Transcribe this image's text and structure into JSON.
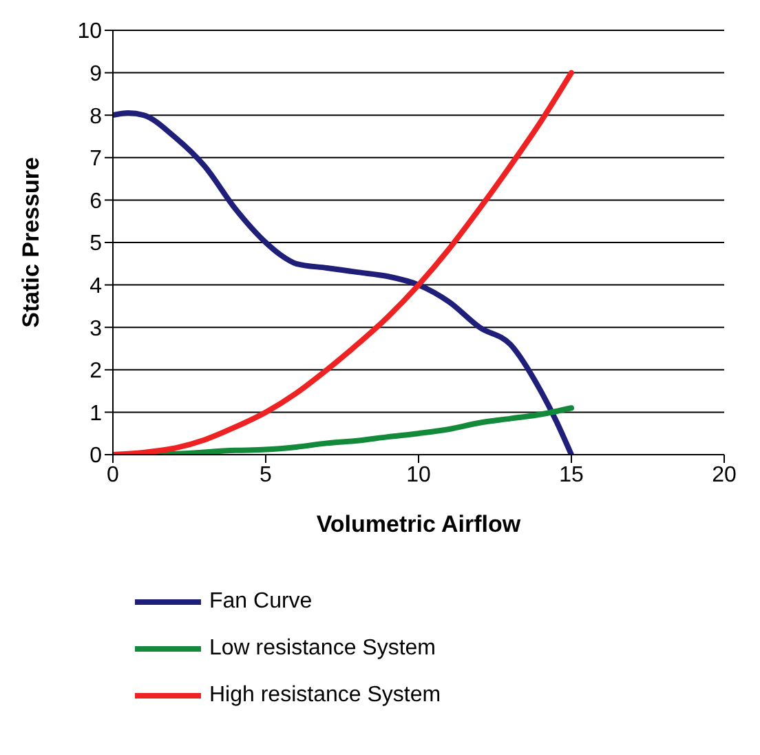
{
  "chart_data": {
    "type": "line",
    "xlabel": "Volumetric Airflow",
    "ylabel": "Static Pressure",
    "xlim": [
      0,
      20
    ],
    "xticks": [
      0,
      5,
      10,
      15,
      20
    ],
    "ylim": [
      0,
      10
    ],
    "yticks": [
      0,
      1,
      2,
      3,
      4,
      5,
      6,
      7,
      8,
      9,
      10
    ],
    "grid": "y",
    "legend": "bottom",
    "marker": "none",
    "line_style": "solid",
    "series": [
      {
        "name": "Fan Curve",
        "color": "#1f1f7a",
        "x": [
          0,
          0.5,
          1,
          2,
          3,
          4,
          5,
          5.5,
          6,
          7,
          8,
          9,
          10,
          11,
          12,
          13,
          14,
          14.5,
          15
        ],
        "values": [
          8,
          8.05,
          8,
          7.5,
          6.8,
          5.8,
          5,
          4.7,
          4.5,
          4.4,
          4.3,
          4.2,
          4,
          3.6,
          3,
          2.6,
          1.5,
          0.8,
          0
        ]
      },
      {
        "name": "Low resistance System",
        "color": "#128a3a",
        "x": [
          0,
          2,
          4,
          5,
          6,
          7,
          8,
          9,
          10,
          11,
          12,
          13,
          14,
          15
        ],
        "values": [
          0,
          0.02,
          0.1,
          0.12,
          0.18,
          0.27,
          0.33,
          0.42,
          0.5,
          0.6,
          0.75,
          0.85,
          0.95,
          1.1
        ]
      },
      {
        "name": "High resistance System",
        "color": "#ee2222",
        "x": [
          0,
          1,
          2,
          3,
          4,
          5,
          6,
          7,
          8,
          9,
          10,
          11,
          12,
          13,
          14,
          15
        ],
        "values": [
          0,
          0.05,
          0.15,
          0.35,
          0.65,
          1,
          1.45,
          2,
          2.6,
          3.25,
          4,
          4.85,
          5.8,
          6.8,
          7.85,
          9
        ]
      }
    ]
  }
}
